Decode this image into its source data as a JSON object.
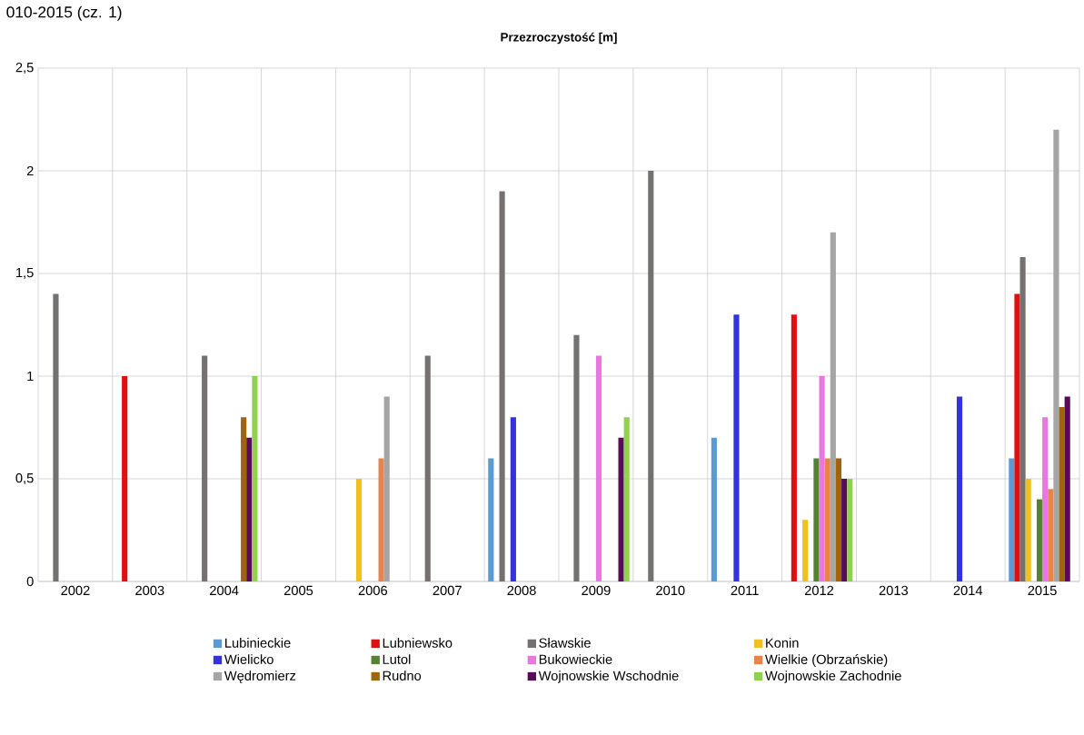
{
  "chart_data": {
    "type": "bar",
    "title": "Przezroczystość [m]",
    "annotations": [
      "010-2015 (cz. 1)"
    ],
    "categories": [
      "2002",
      "2003",
      "2004",
      "2005",
      "2006",
      "2007",
      "2008",
      "2009",
      "2010",
      "2011",
      "2012",
      "2013",
      "2014",
      "2015"
    ],
    "series": [
      {
        "name": "Lubinieckie",
        "color": "#5b9bd5",
        "values": [
          null,
          null,
          null,
          null,
          null,
          null,
          0.6,
          null,
          null,
          0.7,
          null,
          null,
          null,
          0.6
        ]
      },
      {
        "name": "Lubniewsko",
        "color": "#e01010",
        "values": [
          null,
          1.0,
          null,
          null,
          null,
          null,
          null,
          null,
          null,
          null,
          1.3,
          null,
          null,
          1.4
        ]
      },
      {
        "name": "Sławskie",
        "color": "#767171",
        "values": [
          1.4,
          null,
          1.1,
          null,
          null,
          1.1,
          1.9,
          1.2,
          2.0,
          null,
          null,
          null,
          null,
          1.58
        ]
      },
      {
        "name": "Konin",
        "color": "#f0c020",
        "values": [
          null,
          null,
          null,
          null,
          0.5,
          null,
          null,
          null,
          null,
          null,
          0.3,
          null,
          null,
          0.5
        ]
      },
      {
        "name": "Wielicko",
        "color": "#3333dd",
        "values": [
          null,
          null,
          null,
          null,
          null,
          null,
          0.8,
          null,
          null,
          1.3,
          null,
          null,
          0.9,
          null
        ]
      },
      {
        "name": "Lutol",
        "color": "#548235",
        "values": [
          null,
          null,
          null,
          null,
          null,
          null,
          null,
          null,
          null,
          null,
          0.6,
          null,
          null,
          0.4
        ]
      },
      {
        "name": "Bukowieckie",
        "color": "#e878e0",
        "values": [
          null,
          null,
          null,
          null,
          null,
          null,
          null,
          1.1,
          null,
          null,
          1.0,
          null,
          null,
          0.8
        ]
      },
      {
        "name": "Wielkie (Obrzańskie)",
        "color": "#e8844a",
        "values": [
          null,
          null,
          null,
          null,
          0.6,
          null,
          null,
          null,
          null,
          null,
          0.6,
          null,
          null,
          0.45
        ]
      },
      {
        "name": "Wędromierz",
        "color": "#a5a5a5",
        "values": [
          null,
          null,
          null,
          null,
          0.9,
          null,
          null,
          null,
          null,
          null,
          1.7,
          null,
          null,
          2.2
        ]
      },
      {
        "name": "Rudno",
        "color": "#a0640c",
        "values": [
          null,
          null,
          0.8,
          null,
          null,
          null,
          null,
          null,
          null,
          null,
          0.6,
          null,
          null,
          0.85
        ]
      },
      {
        "name": "Wojnowskie Wschodnie",
        "color": "#5a0a5a",
        "values": [
          null,
          null,
          0.7,
          null,
          null,
          null,
          null,
          0.7,
          null,
          null,
          0.5,
          null,
          null,
          0.9
        ]
      },
      {
        "name": "Wojnowskie Zachodnie",
        "color": "#92d050",
        "values": [
          null,
          null,
          1.0,
          null,
          null,
          null,
          null,
          0.8,
          null,
          null,
          0.5,
          null,
          null,
          null
        ]
      }
    ],
    "ylim": [
      0,
      2.5
    ],
    "yticks": [
      0,
      {
        "value": 0.5,
        "label": "0,5"
      },
      1,
      {
        "value": 1.5,
        "label": "1,5"
      },
      2,
      {
        "value": 2.5,
        "label": "2,5"
      }
    ],
    "grid": true,
    "legend": "bottom"
  }
}
